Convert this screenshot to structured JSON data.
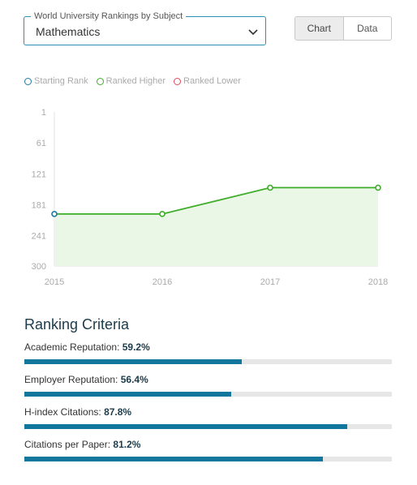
{
  "subject_select": {
    "legend": "World University Rankings by Subject",
    "value": "Mathematics"
  },
  "view_toggle": {
    "chart_label": "Chart",
    "data_label": "Data",
    "active": "Chart"
  },
  "legend": {
    "items": [
      {
        "label": "Starting Rank",
        "color": "#1f78a0"
      },
      {
        "label": "Ranked Higher",
        "color": "#3fae2a"
      },
      {
        "label": "Ranked Lower",
        "color": "#e2485a"
      }
    ]
  },
  "chart_data": {
    "type": "area",
    "title": "",
    "xlabel": "",
    "ylabel": "",
    "x": [
      "2015",
      "2016",
      "2017",
      "2018"
    ],
    "y_ticks": [
      "1",
      "61",
      "121",
      "181",
      "241",
      "300"
    ],
    "ylim": [
      1,
      300
    ],
    "y_reversed": true,
    "series": [
      {
        "values": [
          199,
          199,
          148,
          148
        ]
      }
    ],
    "grid": false,
    "legend_position": "top-left",
    "colors": {
      "line": "#3fae2a",
      "fill": "#eaf6e6",
      "start": "#1f78a0"
    }
  },
  "criteria": {
    "title": "Ranking Criteria",
    "items": [
      {
        "label": "Academic Reputation:",
        "value_text": "59.2%",
        "value": 59.2
      },
      {
        "label": "Employer Reputation:",
        "value_text": "56.4%",
        "value": 56.4
      },
      {
        "label": "H-index Citations:",
        "value_text": "87.8%",
        "value": 87.8
      },
      {
        "label": "Citations per Paper:",
        "value_text": "81.2%",
        "value": 81.2
      }
    ],
    "bar_color": "#12779c"
  }
}
